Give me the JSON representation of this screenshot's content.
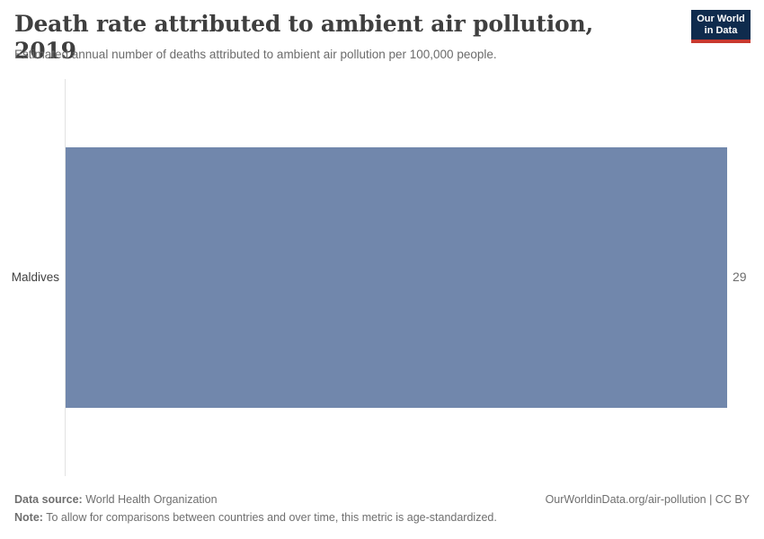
{
  "header": {
    "title": "Death rate attributed to ambient air pollution, 2019",
    "subtitle": "Estimated annual number of deaths attributed to ambient air pollution per 100,000 people.",
    "logo": {
      "line1": "Our World",
      "line2": "in Data",
      "bg_color": "#0f2b4d",
      "accent_color": "#c9392f"
    }
  },
  "chart_data": {
    "type": "bar",
    "orientation": "horizontal",
    "categories": [
      "Maldives"
    ],
    "values": [
      29
    ],
    "value_labels": [
      "29"
    ],
    "title": "Death rate attributed to ambient air pollution, 2019",
    "xlabel": "",
    "ylabel": "",
    "xlim": [
      0,
      29
    ],
    "grid": false,
    "legend": false,
    "bar_color": "#7187ac",
    "axis_line_color": "#e2e2e2"
  },
  "footer": {
    "data_source_label": "Data source:",
    "data_source_value": " World Health Organization",
    "note_label": "Note:",
    "note_value": " To allow for comparisons between countries and over time, this metric is age-standardized.",
    "link_text": "OurWorldinData.org/air-pollution | CC BY"
  }
}
